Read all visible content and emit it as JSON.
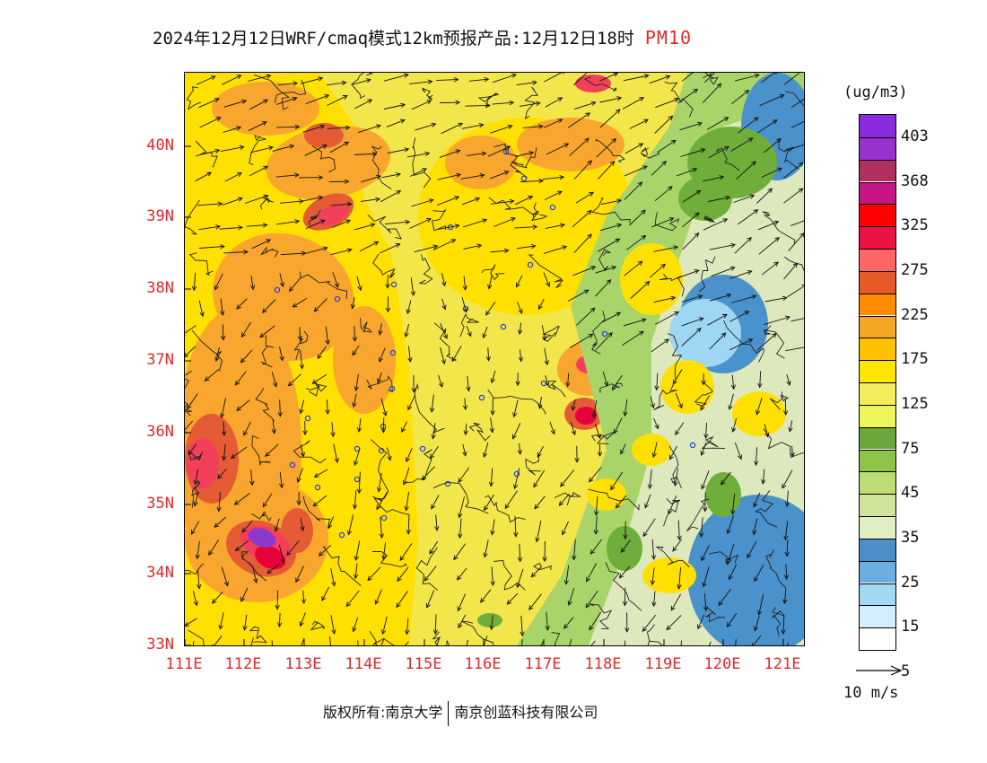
{
  "header": {
    "title": "2024年12月12日WRF/cmaq模式12km预报产品:12月12日18时",
    "variable": "PM10"
  },
  "map": {
    "lat_labels": [
      "40N",
      "39N",
      "38N",
      "37N",
      "36N",
      "35N",
      "34N",
      "33N"
    ],
    "lon_labels": [
      "111E",
      "112E",
      "113E",
      "114E",
      "115E",
      "116E",
      "117E",
      "118E",
      "119E",
      "120E",
      "121E"
    ],
    "fill_colors": {
      "background_75": "#f3e64a",
      "band_125": "#ffe000",
      "band_175": "#f9a62e",
      "band_225": "#e45b34",
      "band_275": "#f3405a",
      "band_325": "#e8003a",
      "band_403": "#8b3ad0",
      "low_45": "#6fae3a",
      "low_35": "#a9d46a",
      "low_25": "#dde9bc",
      "low_15": "#4a92cb",
      "sea": "#9fd6f3"
    }
  },
  "legend": {
    "unit": "(ug/m3)",
    "labels": [
      "403",
      "368",
      "325",
      "275",
      "225",
      "175",
      "125",
      "75",
      "45",
      "35",
      "25",
      "15",
      "5"
    ],
    "colors": [
      "#8a2be2",
      "#9932cc",
      "#b03060",
      "#c71585",
      "#ff0000",
      "#ee1144",
      "#ff6666",
      "#e8592a",
      "#ff8c00",
      "#f5a623",
      "#ffc000",
      "#ffe600",
      "#f2ec5c",
      "#eef55a",
      "#6aa73a",
      "#8dc349",
      "#bcdc74",
      "#cfe39a",
      "#e1edc2",
      "#4a8fc8",
      "#6aaee0",
      "#a3d8f3",
      "#d2edfb",
      "#ffffff"
    ]
  },
  "wind_reference": {
    "label": "10 m/s"
  },
  "footer": {
    "copyright_left": "版权所有:南京大学",
    "copyright_right": "南京创蓝科技有限公司"
  }
}
